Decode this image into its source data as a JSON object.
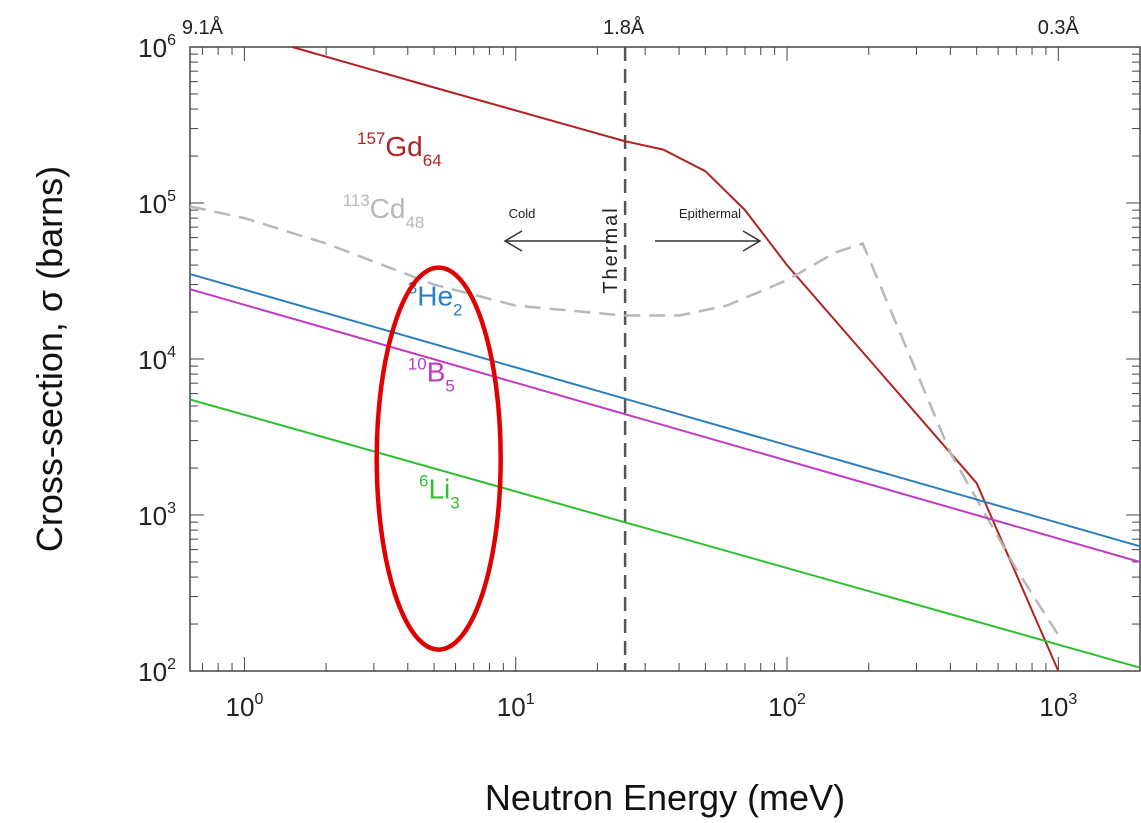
{
  "chart_data": {
    "type": "line",
    "xlabel": "Neutron Energy (meV)",
    "ylabel": "Cross-section, σ (barns)",
    "x_scale": "log",
    "y_scale": "log",
    "xlim": [
      0.63,
      2000
    ],
    "ylim": [
      100,
      1000000
    ],
    "x_ticks": [
      {
        "value": 1,
        "base": "10",
        "exp": "0"
      },
      {
        "value": 10,
        "base": "10",
        "exp": "1"
      },
      {
        "value": 100,
        "base": "10",
        "exp": "2"
      },
      {
        "value": 1000,
        "base": "10",
        "exp": "3"
      }
    ],
    "y_ticks": [
      {
        "value": 100,
        "base": "10",
        "exp": "2"
      },
      {
        "value": 1000,
        "base": "10",
        "exp": "3"
      },
      {
        "value": 10000,
        "base": "10",
        "exp": "4"
      },
      {
        "value": 100000,
        "base": "10",
        "exp": "5"
      },
      {
        "value": 1000000,
        "base": "10",
        "exp": "6"
      }
    ],
    "top_axis_labels": [
      {
        "x": 0.7,
        "text": "9.1Å"
      },
      {
        "x": 25,
        "text": "1.8Å"
      },
      {
        "x": 1000,
        "text": "0.3Å"
      }
    ],
    "thermal_line": {
      "x": 25.3,
      "label": "Thermal"
    },
    "region_labels": {
      "cold": {
        "text": "Cold",
        "x": 9.5,
        "y": 90000
      },
      "epithermal": {
        "text": "Epithermal",
        "x": 75,
        "y": 90000
      }
    },
    "series": [
      {
        "label_mass": "157",
        "label_symbol": "Gd",
        "label_z": "64",
        "color": "#b22222",
        "dash": false,
        "points": [
          [
            1.5,
            1000000
          ],
          [
            5,
            550000
          ],
          [
            25,
            250000
          ],
          [
            35,
            220000
          ],
          [
            50,
            160000
          ],
          [
            70,
            90000
          ],
          [
            100,
            40000
          ],
          [
            200,
            10000
          ],
          [
            500,
            1600
          ],
          [
            1000,
            100
          ]
        ],
        "label_pos": {
          "x": 2.6,
          "y": 200000
        }
      },
      {
        "label_mass": "113",
        "label_symbol": "Cd",
        "label_z": "48",
        "color": "#b8b8b8",
        "dash": true,
        "points": [
          [
            0.63,
            95000
          ],
          [
            1,
            80000
          ],
          [
            2,
            55000
          ],
          [
            5,
            30000
          ],
          [
            10,
            22000
          ],
          [
            25,
            19000
          ],
          [
            40,
            19000
          ],
          [
            60,
            22000
          ],
          [
            100,
            32000
          ],
          [
            150,
            48000
          ],
          [
            190,
            55000
          ],
          [
            400,
            2500
          ],
          [
            700,
            450
          ],
          [
            1000,
            170
          ]
        ],
        "label_pos": {
          "x": 2.3,
          "y": 80000
        }
      },
      {
        "label_mass": "3",
        "label_symbol": "He",
        "label_z": "2",
        "color": "#2a7fbf",
        "dash": false,
        "points": [
          [
            0.63,
            35000
          ],
          [
            2000,
            630
          ]
        ],
        "label_pos": {
          "x": 4.0,
          "y": 22000
        }
      },
      {
        "label_mass": "10",
        "label_symbol": "B",
        "label_z": "5",
        "color": "#c13ac1",
        "dash": false,
        "points": [
          [
            0.63,
            28000
          ],
          [
            2000,
            500
          ]
        ],
        "label_pos": {
          "x": 4.0,
          "y": 7200
        }
      },
      {
        "label_mass": "6",
        "label_symbol": "Li",
        "label_z": "3",
        "color": "#2ec02e",
        "dash": false,
        "points": [
          [
            0.63,
            5500
          ],
          [
            2000,
            105
          ]
        ],
        "label_pos": {
          "x": 4.4,
          "y": 1280
        }
      }
    ],
    "annotation": {
      "shape": "ellipse",
      "color": "#e00000",
      "center_x": 5.2,
      "center_y": 2300
    }
  }
}
